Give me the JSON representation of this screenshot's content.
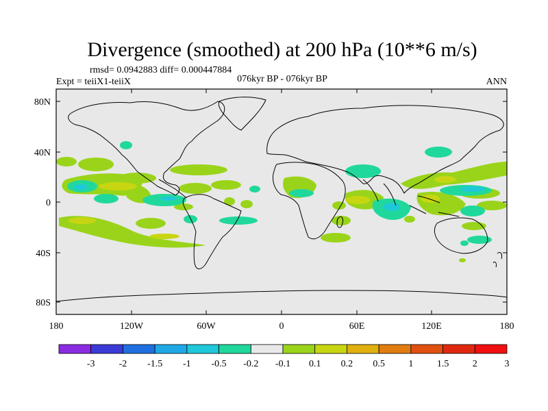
{
  "header": {
    "title": "Divergence (smoothed) at 200 hPa (10**6 m/s)",
    "stats": "rmsd= 0.0942883 diff= 0.000447884",
    "experiment": "Expt = teiiX1-teiiX",
    "period": "076kyr BP - 076kyr BP",
    "season": "ANN"
  },
  "axes": {
    "lat_ticks": [
      "80N",
      "40N",
      "0",
      "40S",
      "80S"
    ],
    "lon_ticks": [
      "180",
      "120W",
      "60W",
      "0",
      "60E",
      "120E",
      "180"
    ]
  },
  "colorbar": {
    "labels": [
      "-3",
      "-2",
      "-1.5",
      "-1",
      "-0.5",
      "-0.2",
      "-0.1",
      "0.1",
      "0.2",
      "0.5",
      "1",
      "1.5",
      "2",
      "3"
    ],
    "colors": [
      "#8a2be2",
      "#3a3ad6",
      "#1f6fe0",
      "#1ea8e6",
      "#1ec8d8",
      "#21d89c",
      "#e8e8e8",
      "#9ad41a",
      "#c8d612",
      "#e0b010",
      "#e07c10",
      "#e05010",
      "#e02810",
      "#f01010"
    ]
  },
  "map": {
    "background": "#e8e8e8",
    "positive_color": "#9ad41a",
    "positive_strong_color": "#c8d612",
    "negative_color": "#21d89c",
    "negative_strong_color": "#1ec8d8"
  }
}
